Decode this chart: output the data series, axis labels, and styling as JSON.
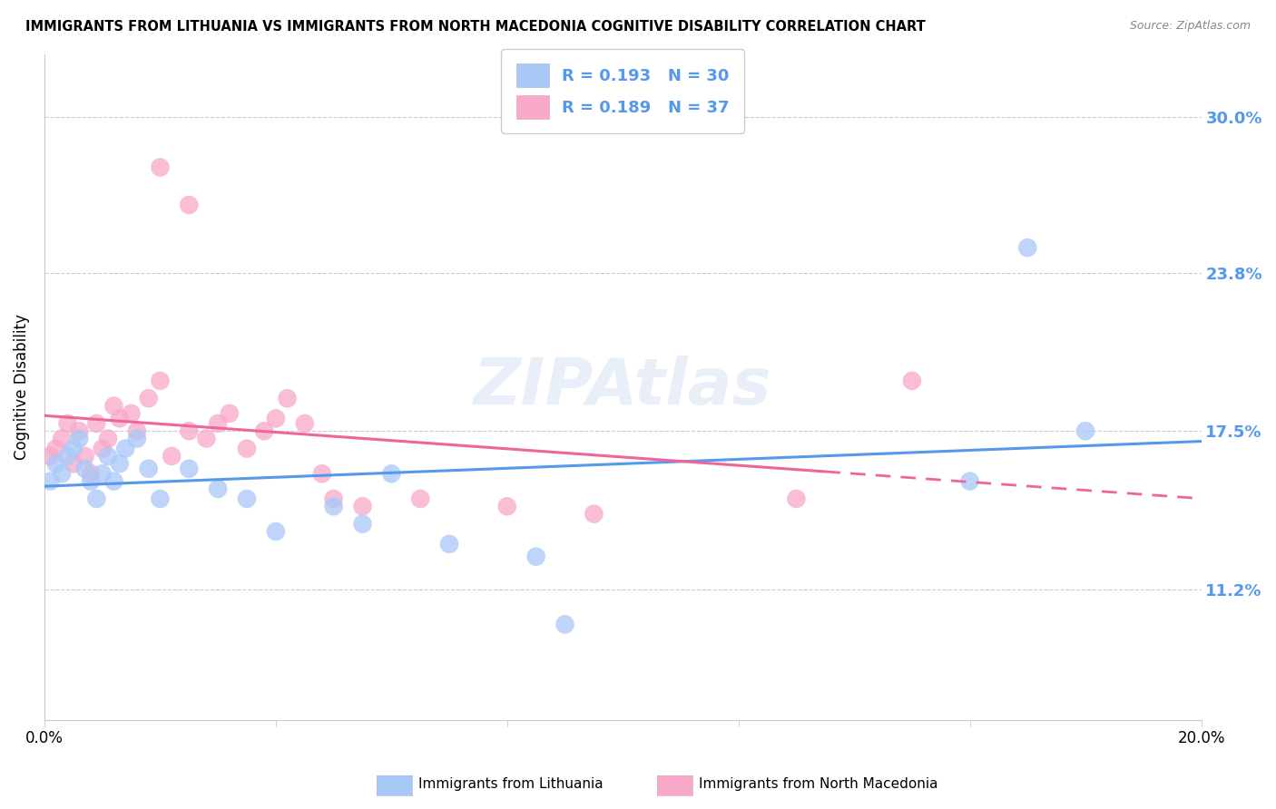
{
  "title": "IMMIGRANTS FROM LITHUANIA VS IMMIGRANTS FROM NORTH MACEDONIA COGNITIVE DISABILITY CORRELATION CHART",
  "source": "Source: ZipAtlas.com",
  "ylabel": "Cognitive Disability",
  "yticks": [
    0.112,
    0.175,
    0.238,
    0.3
  ],
  "ytick_labels": [
    "11.2%",
    "17.5%",
    "23.8%",
    "30.0%"
  ],
  "xlim": [
    0.0,
    0.2
  ],
  "ylim": [
    0.06,
    0.325
  ],
  "r_lithuania": 0.193,
  "n_lithuania": 30,
  "r_north_macedonia": 0.189,
  "n_north_macedonia": 37,
  "color_lithuania": "#a8c8f8",
  "color_north_macedonia": "#f8a8c8",
  "line_color_lithuania": "#5599ee",
  "line_color_north_macedonia": "#ee6699",
  "legend_label_lithuania": "Immigrants from Lithuania",
  "legend_label_north_macedonia": "Immigrants from North Macedonia",
  "watermark": "ZIPAtlas",
  "lithuania_x": [
    0.001,
    0.002,
    0.003,
    0.004,
    0.005,
    0.006,
    0.007,
    0.008,
    0.009,
    0.01,
    0.011,
    0.012,
    0.013,
    0.014,
    0.016,
    0.018,
    0.02,
    0.025,
    0.03,
    0.035,
    0.04,
    0.05,
    0.055,
    0.06,
    0.07,
    0.085,
    0.16,
    0.17,
    0.18,
    0.09
  ],
  "lithuania_y": [
    0.155,
    0.162,
    0.158,
    0.165,
    0.168,
    0.172,
    0.16,
    0.155,
    0.148,
    0.158,
    0.165,
    0.155,
    0.162,
    0.168,
    0.172,
    0.16,
    0.148,
    0.16,
    0.152,
    0.148,
    0.135,
    0.145,
    0.138,
    0.158,
    0.13,
    0.125,
    0.155,
    0.248,
    0.175,
    0.098
  ],
  "north_macedonia_x": [
    0.001,
    0.002,
    0.003,
    0.004,
    0.005,
    0.006,
    0.007,
    0.008,
    0.009,
    0.01,
    0.011,
    0.012,
    0.013,
    0.015,
    0.016,
    0.018,
    0.02,
    0.022,
    0.025,
    0.028,
    0.03,
    0.032,
    0.035,
    0.038,
    0.04,
    0.042,
    0.045,
    0.048,
    0.05,
    0.055,
    0.065,
    0.08,
    0.095,
    0.13,
    0.15,
    0.02,
    0.025
  ],
  "north_macedonia_y": [
    0.165,
    0.168,
    0.172,
    0.178,
    0.162,
    0.175,
    0.165,
    0.158,
    0.178,
    0.168,
    0.172,
    0.185,
    0.18,
    0.182,
    0.175,
    0.188,
    0.195,
    0.165,
    0.175,
    0.172,
    0.178,
    0.182,
    0.168,
    0.175,
    0.18,
    0.188,
    0.178,
    0.158,
    0.148,
    0.145,
    0.148,
    0.145,
    0.142,
    0.148,
    0.195,
    0.28,
    0.265
  ]
}
